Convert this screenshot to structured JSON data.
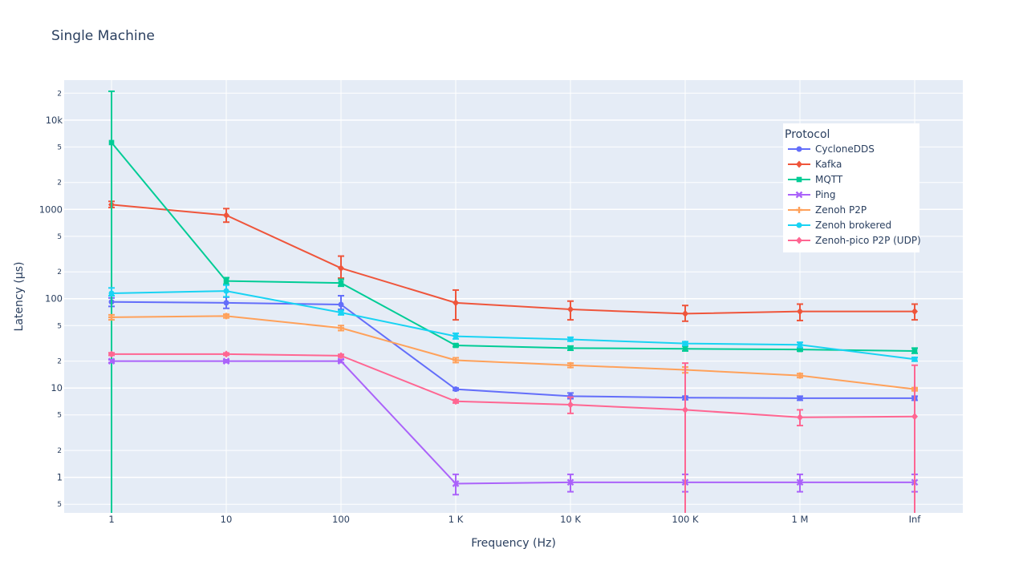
{
  "chart_data": {
    "type": "line",
    "title": "Single Machine",
    "xlabel": "Frequency (Hz)",
    "ylabel": "Latency (µs)",
    "y_scale": "log",
    "ylim": [
      0.4,
      28000
    ],
    "grid": true,
    "categories": [
      "1",
      "10",
      "100",
      "1 K",
      "10 K",
      "100 K",
      "1 M",
      "Inf"
    ],
    "y_tick_labels": [
      "1",
      "10",
      "100",
      "1000",
      "10k"
    ],
    "y_minor_tick_labels": [
      "5",
      "2",
      "5",
      "2",
      "5",
      "2",
      "5",
      "2",
      "5",
      "2"
    ],
    "legend": {
      "title": "Protocol",
      "position": "top-right"
    },
    "colors": {
      "plot_bg": "#e5ecf6",
      "grid": "#ffffff",
      "text": "#2a3f5f"
    },
    "series": [
      {
        "name": "CycloneDDS",
        "color": "#636efa",
        "marker": "circle",
        "values": [
          92,
          90,
          86,
          9.7,
          8.1,
          7.8,
          7.7,
          7.7
        ],
        "err_low": [
          82,
          78,
          76,
          9.4,
          7.6,
          7.4,
          7.3,
          7.3
        ],
        "err_high": [
          102,
          104,
          108,
          10.0,
          8.8,
          8.1,
          8.1,
          8.1
        ]
      },
      {
        "name": "Kafka",
        "color": "#ef553b",
        "marker": "diamond",
        "values": [
          1130,
          860,
          220,
          90,
          76,
          68,
          72,
          72
        ],
        "err_low": [
          1050,
          720,
          170,
          58,
          58,
          56,
          57,
          58
        ],
        "err_high": [
          1230,
          1020,
          300,
          125,
          94,
          84,
          87,
          87
        ]
      },
      {
        "name": "MQTT",
        "color": "#00cc96",
        "marker": "square",
        "values": [
          5600,
          158,
          150,
          30,
          28,
          27.5,
          27,
          26
        ],
        "err_low": [
          0.1,
          145,
          138,
          29,
          26.5,
          26,
          26,
          24.5
        ],
        "err_high": [
          21000,
          172,
          165,
          31,
          29.5,
          29.5,
          28,
          28
        ]
      },
      {
        "name": "Ping",
        "color": "#ab63fa",
        "marker": "x",
        "values": [
          20,
          20,
          20,
          0.85,
          0.88,
          0.88,
          0.88,
          0.88
        ],
        "err_low": [
          19.3,
          19.3,
          19.3,
          0.64,
          0.69,
          0.69,
          0.69,
          0.69
        ],
        "err_high": [
          20.7,
          20.7,
          20.7,
          1.08,
          1.08,
          1.08,
          1.08,
          1.08
        ]
      },
      {
        "name": "Zenoh P2P",
        "color": "#ffa15a",
        "marker": "cross",
        "values": [
          62,
          64,
          47,
          20.5,
          18,
          16,
          13.8,
          9.7
        ],
        "err_low": [
          58,
          61,
          44,
          19.3,
          17,
          14.8,
          13.1,
          9.3
        ],
        "err_high": [
          66,
          67,
          50,
          21.8,
          19,
          17.2,
          14.5,
          10.1
        ]
      },
      {
        "name": "Zenoh brokered",
        "color": "#19d3f3",
        "marker": "circle",
        "values": [
          115,
          122,
          70,
          38,
          35,
          31.5,
          30.5,
          21
        ],
        "err_low": [
          108,
          105,
          66,
          35.5,
          33.5,
          30,
          28.5,
          20
        ],
        "err_high": [
          132,
          142,
          74,
          41,
          37,
          33,
          32.5,
          22
        ]
      },
      {
        "name": "Zenoh-pico P2P (UDP)",
        "color": "#ff6692",
        "marker": "diamond",
        "values": [
          24,
          24,
          23,
          7.1,
          6.5,
          5.7,
          4.7,
          4.8
        ],
        "err_low": [
          23.2,
          23.3,
          22.2,
          6.8,
          5.2,
          0.1,
          3.8,
          0.1
        ],
        "err_high": [
          24.8,
          24.7,
          23.8,
          7.4,
          7.9,
          19,
          5.7,
          18
        ]
      }
    ]
  }
}
